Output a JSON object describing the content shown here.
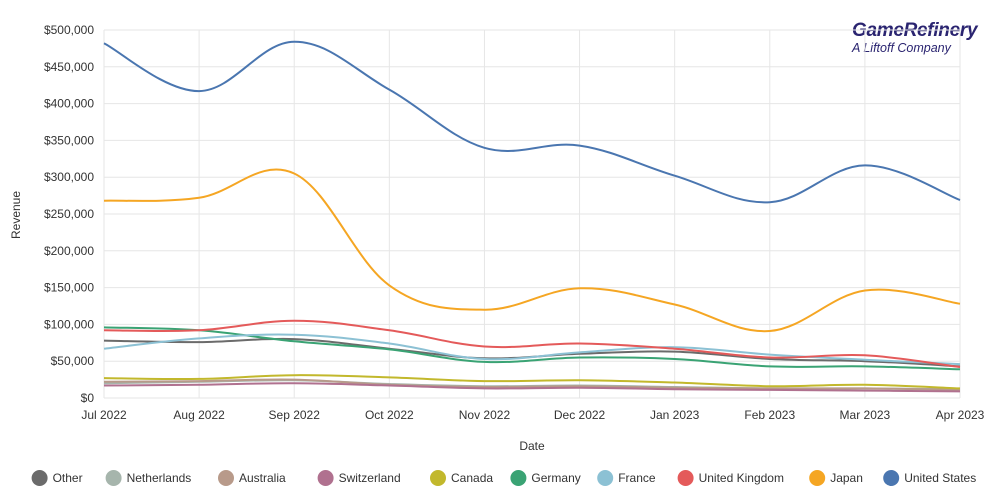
{
  "brand": {
    "name": "GameRefinery",
    "tagline": "A Liftoff Company"
  },
  "chart_data": {
    "type": "line",
    "title": "",
    "xlabel": "Date",
    "ylabel": "Revenue",
    "x": [
      "Jul 2022",
      "Aug 2022",
      "Sep 2022",
      "Oct 2022",
      "Nov 2022",
      "Dec 2022",
      "Jan 2023",
      "Feb 2023",
      "Mar 2023",
      "Apr 2023"
    ],
    "ylim": [
      0,
      500000
    ],
    "yticks": [
      0,
      50000,
      100000,
      150000,
      200000,
      250000,
      300000,
      350000,
      400000,
      450000,
      500000
    ],
    "ytick_labels": [
      "$0",
      "$50,000",
      "$100,000",
      "$150,000",
      "$200,000",
      "$250,000",
      "$300,000",
      "$350,000",
      "$400,000",
      "$450,000",
      "$500,000"
    ],
    "grid": true,
    "legend_position": "bottom",
    "series": [
      {
        "name": "Other",
        "color": "#6b6b6b",
        "values": [
          78000,
          76000,
          80000,
          67000,
          54000,
          60000,
          63000,
          53000,
          50000,
          43000
        ]
      },
      {
        "name": "Netherlands",
        "color": "#a6b5ac",
        "values": [
          20000,
          22000,
          24000,
          19000,
          16000,
          17000,
          15000,
          13000,
          13000,
          12000
        ]
      },
      {
        "name": "Australia",
        "color": "#b89a8a",
        "values": [
          22000,
          23000,
          25000,
          18000,
          15000,
          16000,
          14000,
          13000,
          13000,
          11000
        ]
      },
      {
        "name": "Switzerland",
        "color": "#b0718f",
        "values": [
          17000,
          18000,
          20000,
          17000,
          13000,
          14000,
          12000,
          11000,
          10000,
          9000
        ]
      },
      {
        "name": "Canada",
        "color": "#c2b82c",
        "values": [
          27000,
          26000,
          31000,
          28000,
          23000,
          24000,
          21000,
          16000,
          18000,
          13000
        ]
      },
      {
        "name": "Germany",
        "color": "#3aa374",
        "values": [
          96000,
          92000,
          77000,
          66000,
          49000,
          55000,
          53000,
          43000,
          43000,
          39000
        ]
      },
      {
        "name": "France",
        "color": "#8cc1d4",
        "values": [
          67000,
          81000,
          86000,
          74000,
          53000,
          62000,
          69000,
          59000,
          52000,
          46000
        ]
      },
      {
        "name": "United Kingdom",
        "color": "#e45a5a",
        "values": [
          92000,
          92000,
          105000,
          92000,
          70000,
          74000,
          67000,
          55000,
          58000,
          42000
        ]
      },
      {
        "name": "Japan",
        "color": "#f5a623",
        "values": [
          268000,
          272000,
          305000,
          153000,
          120000,
          149000,
          127000,
          91000,
          146000,
          128000
        ]
      },
      {
        "name": "United States",
        "color": "#4a76b0",
        "values": [
          482000,
          417000,
          484000,
          419000,
          340000,
          343000,
          302000,
          266000,
          316000,
          269000
        ]
      }
    ]
  }
}
